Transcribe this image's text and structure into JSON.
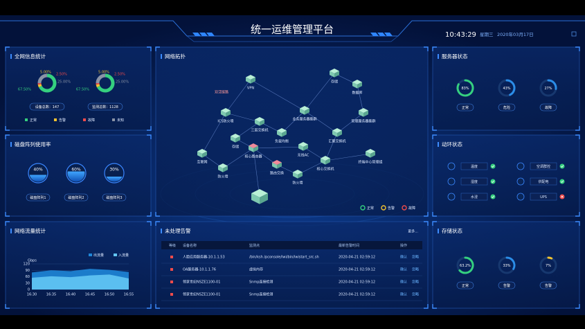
{
  "header": {
    "title": "统一运维管理平台",
    "time": "10:43:29",
    "weekday": "星期三",
    "date": "2020年03月17日"
  },
  "network_stats": {
    "title": "全网信息统计",
    "legend": [
      {
        "name": "正常",
        "color": "#35d07f"
      },
      {
        "name": "告警",
        "color": "#f2c230"
      },
      {
        "name": "故障",
        "color": "#ef4b4b"
      },
      {
        "name": "未知",
        "color": "#8a93a6"
      }
    ],
    "donuts": [
      {
        "caption": "设备总数：147",
        "values": [
          67.5,
          5,
          2.5,
          25
        ],
        "value_labels": [
          "67.50%",
          "5.00%",
          "2.50%",
          "25.00%"
        ]
      },
      {
        "caption": "监测总数：1128",
        "values": [
          67.5,
          5,
          2.5,
          25
        ],
        "value_labels": [
          "67.50%",
          "5.00%",
          "2.50%",
          "25.00%"
        ]
      }
    ]
  },
  "disk_usage": {
    "title": "磁盘阵列使用率",
    "items": [
      {
        "name": "磁盘阵列1",
        "value": 40,
        "label": "40%"
      },
      {
        "name": "磁盘阵列2",
        "value": 60,
        "label": "60%"
      },
      {
        "name": "磁盘阵列3",
        "value": 30,
        "label": "30%"
      }
    ]
  },
  "traffic": {
    "title": "网络流量统计",
    "chart_data": {
      "type": "area",
      "y_label": "Gbps",
      "categories": [
        "16:30",
        "16:35",
        "16:40",
        "16:45",
        "16:50",
        "16:55"
      ],
      "series": [
        {
          "name": "出流量",
          "color": "#1f86d8",
          "values": [
            80,
            90,
            86,
            97,
            92,
            82
          ]
        },
        {
          "name": "入流量",
          "color": "#63c6f4",
          "values": [
            55,
            62,
            58,
            66,
            70,
            52
          ]
        }
      ],
      "ylim": [
        0,
        120
      ],
      "yticks": [
        0,
        30,
        60,
        90,
        120
      ]
    }
  },
  "topology": {
    "title": "网络拓扑",
    "link_label": "双活链路",
    "nodes": [
      {
        "label": "VPN"
      },
      {
        "label": "ICS防火墙"
      },
      {
        "label": "三层交换机"
      },
      {
        "label": "负载均衡"
      },
      {
        "label": "业务服务器集群"
      },
      {
        "label": "存储"
      },
      {
        "label": "数据库"
      },
      {
        "label": "管理服务器集群"
      },
      {
        "label": "汇聚交换机"
      },
      {
        "label": "存储"
      },
      {
        "label": "核心路由器"
      },
      {
        "label": "无线AC"
      },
      {
        "label": "路由交换"
      },
      {
        "label": "核心交换机"
      },
      {
        "label": "互联网"
      },
      {
        "label": "防火墙"
      },
      {
        "label": "防火墙"
      },
      {
        "label": "终端中心管理组"
      }
    ],
    "legend": [
      {
        "name": "正常",
        "color": "#35d07f"
      },
      {
        "name": "告警",
        "color": "#f2c230"
      },
      {
        "name": "故障",
        "color": "#ef4b4b"
      }
    ]
  },
  "alarms": {
    "title": "未处理告警",
    "more": "更多...",
    "columns": [
      "等级",
      "设备名称",
      "监测点",
      "最新告警时间",
      "操作"
    ],
    "actions": [
      "确认",
      "忽略"
    ],
    "rows": [
      [
        "人脸应用服务器-10.1.1.53",
        "/bin/ksh /pconsole/lwi/bin/lwistart_src.sh",
        "2020-04-21 02:59:12"
      ],
      [
        "OA服务器-10.1.1.76",
        "虚拟内存",
        "2020-04-21 02:59:12"
      ],
      [
        "领家世纪NSZE1100-01",
        "Snmp连接检测",
        "2020-04-21 02:59:12"
      ],
      [
        "领家世纪NSZE1100-01",
        "Snmp连接检测",
        "2020-04-21 02:59:12"
      ]
    ]
  },
  "server_status": {
    "title": "服务器状态",
    "gauges": [
      {
        "value": 83,
        "label": "83%",
        "status": "正常",
        "color": "#35d07f"
      },
      {
        "value": 43,
        "label": "43%",
        "status": "危险",
        "color": "#2b8de8"
      },
      {
        "value": 27,
        "label": "27%",
        "status": "故障",
        "color": "#2b8de8"
      }
    ]
  },
  "environment": {
    "title": "动环状态",
    "items": [
      {
        "name": "温度",
        "ok": true
      },
      {
        "name": "空调群控",
        "ok": true
      },
      {
        "name": "湿度",
        "ok": true
      },
      {
        "name": "供配电",
        "ok": true
      },
      {
        "name": "水浸",
        "ok": true
      },
      {
        "name": "UPS",
        "ok": false
      }
    ]
  },
  "storage_status": {
    "title": "存储状态",
    "gauges": [
      {
        "value": 63.2,
        "label": "63.2%",
        "status": "正常",
        "color": "#35d07f"
      },
      {
        "value": 33,
        "label": "33%",
        "status": "告警",
        "color": "#2b8de8"
      },
      {
        "value": 7,
        "label": "7%",
        "status": "告警",
        "color": "#f2c230"
      }
    ]
  }
}
